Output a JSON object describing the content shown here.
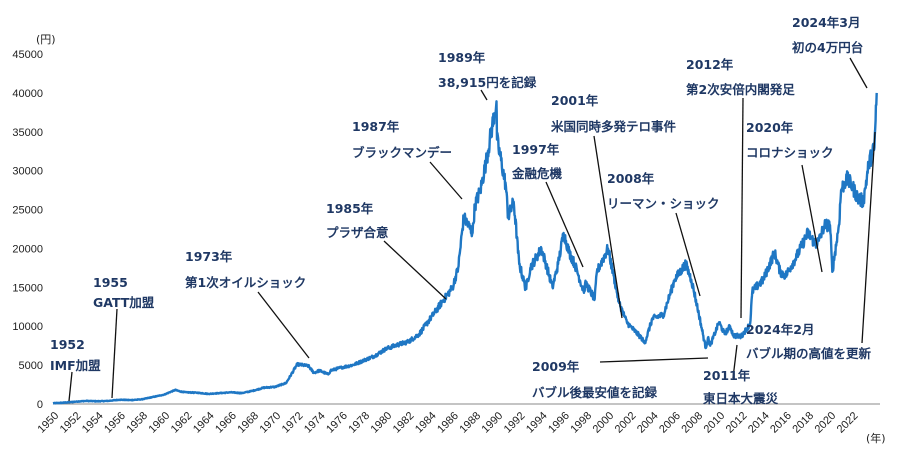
{
  "chart_data": {
    "type": "line",
    "yunit": "(円)",
    "xunit": "(年)",
    "ylim": [
      0,
      45000
    ],
    "xlim": [
      1950,
      2024.5
    ],
    "yticks": [
      "0",
      "5000",
      "10000",
      "15000",
      "20000",
      "25000",
      "30000",
      "35000",
      "40000",
      "45000"
    ],
    "xticks": [
      "1950",
      "1952",
      "1954",
      "1956",
      "1958",
      "1960",
      "1962",
      "1964",
      "1966",
      "1968",
      "1970",
      "1972",
      "1974",
      "1976",
      "1978",
      "1980",
      "1982",
      "1984",
      "1986",
      "1988",
      "1990",
      "1992",
      "1994",
      "1996",
      "1998",
      "2000",
      "2002",
      "2004",
      "2006",
      "2008",
      "2010",
      "2012",
      "2014",
      "2016",
      "2018",
      "2020",
      "2022"
    ],
    "grid": false,
    "line_color": "#1f77c4",
    "series": [
      {
        "x": [
          1950,
          1951,
          1952,
          1953,
          1954,
          1955,
          1956,
          1957,
          1958,
          1959,
          1960,
          1961,
          1961.5,
          1962,
          1963,
          1964,
          1965,
          1966,
          1967,
          1968,
          1969,
          1970,
          1971,
          1972,
          1973,
          1973.5,
          1974,
          1974.8,
          1975,
          1976,
          1977,
          1978,
          1979,
          1980,
          1981,
          1982,
          1983,
          1984,
          1985,
          1986,
          1986.5,
          1987,
          1987.8,
          1988,
          1988.5,
          1989,
          1989.95,
          1990,
          1990.8,
          1991,
          1991.5,
          1992,
          1992.6,
          1993,
          1994,
          1995,
          1995.5,
          1996,
          1996.5,
          1997,
          1997.8,
          1998,
          1998.8,
          1999,
          2000,
          2000.5,
          2001,
          2001.7,
          2002,
          2003,
          2003.3,
          2004,
          2005,
          2006,
          2007,
          2007.5,
          2008,
          2008.8,
          2009,
          2009.2,
          2010,
          2010.5,
          2011,
          2011.3,
          2012,
          2012.8,
          2013,
          2014,
          2015,
          2015.5,
          2016,
          2017,
          2018,
          2018.7,
          2019,
          2019.5,
          2020,
          2020.2,
          2020.8,
          2021,
          2021.5,
          2022,
          2022.5,
          2023,
          2023.5,
          2024,
          2024.2
        ],
        "y": [
          100,
          170,
          300,
          400,
          350,
          400,
          550,
          500,
          600,
          900,
          1200,
          1800,
          1600,
          1500,
          1450,
          1300,
          1400,
          1500,
          1400,
          1700,
          2100,
          2200,
          2700,
          5100,
          4900,
          4000,
          4300,
          3800,
          4300,
          4700,
          5000,
          5600,
          6200,
          7100,
          7600,
          8000,
          9000,
          11000,
          13000,
          15000,
          17500,
          24000,
          22000,
          25500,
          27500,
          31000,
          38915,
          34000,
          28000,
          24000,
          26000,
          18000,
          14800,
          17500,
          20000,
          15000,
          18000,
          22000,
          19500,
          18000,
          14500,
          15500,
          13500,
          17000,
          20000,
          16500,
          13000,
          10500,
          10000,
          8500,
          7800,
          11000,
          11500,
          16000,
          18000,
          16000,
          12800,
          7200,
          8500,
          7500,
          10500,
          9000,
          10000,
          8800,
          8700,
          10300,
          14500,
          16000,
          19500,
          17000,
          16500,
          19000,
          22000,
          20500,
          21000,
          23000,
          23000,
          17000,
          23000,
          27500,
          29000,
          28000,
          26500,
          26000,
          31000,
          33000,
          40000
        ]
      }
    ],
    "annotations": [
      {
        "year": "1952",
        "event": "IMF加盟"
      },
      {
        "year": "1955",
        "event": "GATT加盟"
      },
      {
        "year": "1973年",
        "event": "第1次オイルショック"
      },
      {
        "year": "1985年",
        "event": "プラザ合意"
      },
      {
        "year": "1987年",
        "event": "ブラックマンデー"
      },
      {
        "year": "1989年",
        "event": "38,915円を記録"
      },
      {
        "year": "1997年",
        "event": "金融危機"
      },
      {
        "year": "2001年",
        "event": "米国同時多発テロ事件"
      },
      {
        "year": "2008年",
        "event": "リーマン・ショック"
      },
      {
        "year": "2009年",
        "event": "バブル後最安値を記録"
      },
      {
        "year": "2011年",
        "event": "東日本大震災"
      },
      {
        "year": "2012年",
        "event": "第2次安倍内閣発足"
      },
      {
        "year": "2020年",
        "event": "コロナショック"
      },
      {
        "year": "2024年2月",
        "event": "バブル期の高値を更新"
      },
      {
        "year": "2024年3月",
        "event": "初の4万円台"
      }
    ]
  }
}
